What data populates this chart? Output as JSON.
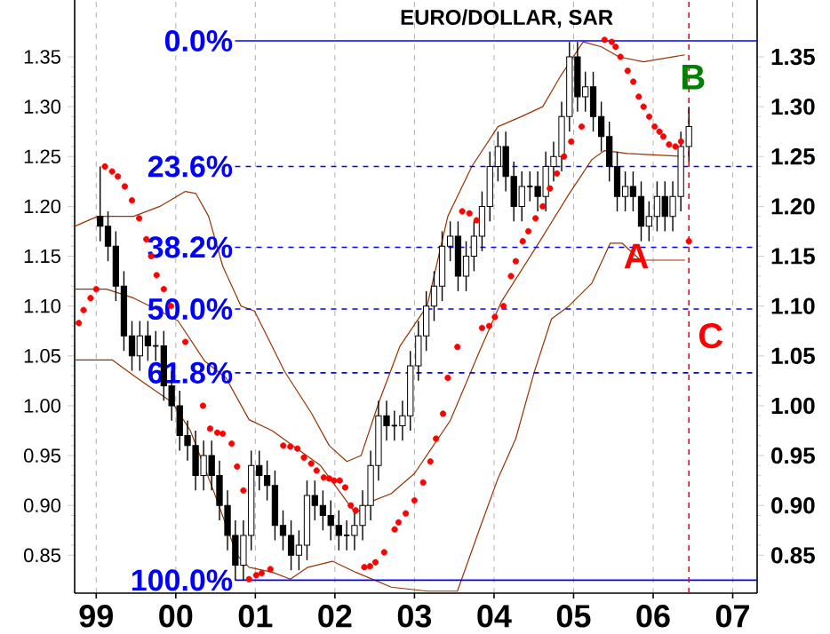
{
  "chart_data": {
    "type": "candlestick",
    "title": "EURO/DOLLAR, SAR",
    "xlim": [
      "1998-09-24",
      "2007-04-23"
    ],
    "ylim": [
      0.812,
      1.407
    ],
    "y2lim": [
      0.812,
      1.407
    ],
    "grid": "x",
    "xticks": [
      {
        "value": "1999",
        "label": "99"
      },
      {
        "value": "2000",
        "label": "00"
      },
      {
        "value": "2001",
        "label": "01"
      },
      {
        "value": "2002",
        "label": "02"
      },
      {
        "value": "2003",
        "label": "03"
      },
      {
        "value": "2004",
        "label": "04"
      },
      {
        "value": "2005",
        "label": "05"
      },
      {
        "value": "2006",
        "label": "06"
      },
      {
        "value": "2007",
        "label": "07"
      }
    ],
    "yticks": [
      {
        "value": 0.85,
        "label": "0.85"
      },
      {
        "value": 0.9,
        "label": "0.90"
      },
      {
        "value": 0.95,
        "label": "0.95"
      },
      {
        "value": 1.0,
        "label": "1.00"
      },
      {
        "value": 1.05,
        "label": "1.05"
      },
      {
        "value": 1.1,
        "label": "1.10"
      },
      {
        "value": 1.15,
        "label": "1.15"
      },
      {
        "value": 1.2,
        "label": "1.20"
      },
      {
        "value": 1.25,
        "label": "1.25"
      },
      {
        "value": 1.3,
        "label": "1.30"
      },
      {
        "value": 1.35,
        "label": "1.35"
      }
    ],
    "y2ticks": [
      {
        "value": 0.85,
        "label": "0.85"
      },
      {
        "value": 0.9,
        "label": "0.90"
      },
      {
        "value": 0.95,
        "label": "0.95"
      },
      {
        "value": 1.0,
        "label": "1.00"
      },
      {
        "value": 1.05,
        "label": "1.05"
      },
      {
        "value": 1.1,
        "label": "1.10"
      },
      {
        "value": 1.15,
        "label": "1.15"
      },
      {
        "value": 1.2,
        "label": "1.20"
      },
      {
        "value": 1.25,
        "label": "1.25"
      },
      {
        "value": 1.3,
        "label": "1.30"
      },
      {
        "value": 1.35,
        "label": "1.35"
      }
    ],
    "x": [
      "1999-01-19",
      "1999-02-24",
      "1999-04-01",
      "1999-05-08",
      "1999-06-14",
      "1999-07-20",
      "1999-08-26",
      "1999-10-01",
      "1999-11-07",
      "1999-12-13",
      "2000-01-19",
      "2000-02-24",
      "2000-04-01",
      "2000-05-08",
      "2000-06-14",
      "2000-07-20",
      "2000-08-26",
      "2000-10-01",
      "2000-11-07",
      "2000-12-13",
      "2001-01-19",
      "2001-02-24",
      "2001-04-01",
      "2001-05-08",
      "2001-06-14",
      "2001-07-20",
      "2001-08-26",
      "2001-10-01",
      "2001-11-07",
      "2001-12-13",
      "2002-01-19",
      "2002-02-24",
      "2002-04-01",
      "2002-05-08",
      "2002-06-14",
      "2002-07-20",
      "2002-08-26",
      "2002-10-01",
      "2002-11-07",
      "2002-12-13",
      "2003-01-19",
      "2003-02-24",
      "2003-04-01",
      "2003-05-08",
      "2003-06-14",
      "2003-07-20",
      "2003-08-26",
      "2003-10-01",
      "2003-11-07",
      "2003-12-13",
      "2004-01-19",
      "2004-02-24",
      "2004-04-01",
      "2004-05-08",
      "2004-06-14",
      "2004-07-20",
      "2004-08-26",
      "2004-10-01",
      "2004-11-07",
      "2004-12-13",
      "2005-01-19",
      "2005-02-24",
      "2005-04-01",
      "2005-05-08",
      "2005-06-14",
      "2005-07-20",
      "2005-08-26",
      "2005-10-01",
      "2005-11-07",
      "2005-12-13",
      "2006-01-19",
      "2006-02-24",
      "2006-04-01",
      "2006-05-08",
      "2006-06-14"
    ],
    "ohlc": [
      [
        1.19,
        1.24,
        1.165,
        1.18
      ],
      [
        1.18,
        1.195,
        1.145,
        1.16
      ],
      [
        1.16,
        1.175,
        1.105,
        1.12
      ],
      [
        1.12,
        1.135,
        1.055,
        1.07
      ],
      [
        1.07,
        1.085,
        1.035,
        1.05
      ],
      [
        1.05,
        1.085,
        1.035,
        1.07
      ],
      [
        1.07,
        1.085,
        1.045,
        1.06
      ],
      [
        1.06,
        1.075,
        1.045,
        1.06
      ],
      [
        1.06,
        1.075,
        1.005,
        1.02
      ],
      [
        1.02,
        1.035,
        0.985,
        1.0
      ],
      [
        1.0,
        1.015,
        0.955,
        0.97
      ],
      [
        0.97,
        0.985,
        0.945,
        0.96
      ],
      [
        0.96,
        0.975,
        0.915,
        0.93
      ],
      [
        0.93,
        0.965,
        0.915,
        0.95
      ],
      [
        0.95,
        0.965,
        0.915,
        0.93
      ],
      [
        0.93,
        0.945,
        0.885,
        0.9
      ],
      [
        0.9,
        0.915,
        0.855,
        0.87
      ],
      [
        0.87,
        0.885,
        0.825,
        0.84
      ],
      [
        0.84,
        0.885,
        0.825,
        0.87
      ],
      [
        0.87,
        0.955,
        0.855,
        0.94
      ],
      [
        0.94,
        0.955,
        0.915,
        0.93
      ],
      [
        0.93,
        0.945,
        0.905,
        0.92
      ],
      [
        0.92,
        0.935,
        0.865,
        0.88
      ],
      [
        0.88,
        0.895,
        0.855,
        0.87
      ],
      [
        0.87,
        0.885,
        0.835,
        0.85
      ],
      [
        0.85,
        0.875,
        0.835,
        0.86
      ],
      [
        0.86,
        0.925,
        0.845,
        0.91
      ],
      [
        0.91,
        0.925,
        0.885,
        0.9
      ],
      [
        0.9,
        0.915,
        0.875,
        0.89
      ],
      [
        0.89,
        0.905,
        0.865,
        0.88
      ],
      [
        0.88,
        0.895,
        0.855,
        0.87
      ],
      [
        0.87,
        0.885,
        0.855,
        0.87
      ],
      [
        0.87,
        0.895,
        0.855,
        0.88
      ],
      [
        0.88,
        0.915,
        0.865,
        0.9
      ],
      [
        0.9,
        0.955,
        0.885,
        0.94
      ],
      [
        0.94,
        1.005,
        0.925,
        0.99
      ],
      [
        0.99,
        1.005,
        0.965,
        0.98
      ],
      [
        0.98,
        0.995,
        0.965,
        0.98
      ],
      [
        0.98,
        1.005,
        0.965,
        0.99
      ],
      [
        0.99,
        1.055,
        0.975,
        1.04
      ],
      [
        1.04,
        1.085,
        1.025,
        1.07
      ],
      [
        1.07,
        1.115,
        1.055,
        1.1
      ],
      [
        1.1,
        1.135,
        1.085,
        1.12
      ],
      [
        1.12,
        1.175,
        1.105,
        1.16
      ],
      [
        1.16,
        1.185,
        1.145,
        1.17
      ],
      [
        1.17,
        1.185,
        1.115,
        1.13
      ],
      [
        1.13,
        1.165,
        1.115,
        1.15
      ],
      [
        1.15,
        1.185,
        1.135,
        1.17
      ],
      [
        1.17,
        1.215,
        1.155,
        1.2
      ],
      [
        1.2,
        1.255,
        1.185,
        1.24
      ],
      [
        1.24,
        1.275,
        1.225,
        1.26
      ],
      [
        1.26,
        1.275,
        1.215,
        1.23
      ],
      [
        1.23,
        1.245,
        1.185,
        1.2
      ],
      [
        1.2,
        1.235,
        1.185,
        1.22
      ],
      [
        1.22,
        1.235,
        1.205,
        1.22
      ],
      [
        1.22,
        1.235,
        1.195,
        1.21
      ],
      [
        1.21,
        1.255,
        1.195,
        1.24
      ],
      [
        1.24,
        1.265,
        1.225,
        1.25
      ],
      [
        1.25,
        1.305,
        1.235,
        1.29
      ],
      [
        1.29,
        1.365,
        1.275,
        1.35
      ],
      [
        1.35,
        1.365,
        1.295,
        1.31
      ],
      [
        1.31,
        1.335,
        1.295,
        1.32
      ],
      [
        1.32,
        1.335,
        1.275,
        1.29
      ],
      [
        1.29,
        1.305,
        1.255,
        1.27
      ],
      [
        1.27,
        1.285,
        1.225,
        1.24
      ],
      [
        1.24,
        1.255,
        1.195,
        1.21
      ],
      [
        1.21,
        1.235,
        1.195,
        1.22
      ],
      [
        1.22,
        1.235,
        1.195,
        1.21
      ],
      [
        1.21,
        1.225,
        1.165,
        1.18
      ],
      [
        1.18,
        1.205,
        1.165,
        1.19
      ],
      [
        1.19,
        1.225,
        1.175,
        1.21
      ],
      [
        1.21,
        1.225,
        1.175,
        1.19
      ],
      [
        1.19,
        1.225,
        1.175,
        1.21
      ],
      [
        1.21,
        1.275,
        1.195,
        1.26
      ],
      [
        1.26,
        1.3,
        1.245,
        1.28
      ]
    ],
    "series": [
      {
        "type": "scatter",
        "color": "#ff0000",
        "marker": "circle",
        "x": [
          "1998-10-13",
          "1998-11-04",
          "1998-12-06",
          "1999-01-01",
          "1999-02-10",
          "1999-03-15",
          "1999-04-10",
          "1999-05-12",
          "1999-06-14",
          "1999-07-17",
          "1999-08-19",
          "1999-09-10",
          "1999-10-05",
          "1999-11-07",
          "1999-12-10",
          "2000-02-14",
          "2000-05-05",
          "2000-06-07",
          "2000-07-10",
          "2000-08-04",
          "2000-09-14",
          "2000-10-09",
          "2000-11-07",
          "2000-12-03",
          "2001-01-05",
          "2001-01-30",
          "2001-03-11",
          "2001-05-09",
          "2001-06-11",
          "2001-07-13",
          "2001-08-12",
          "2001-09-14",
          "2001-10-09",
          "2001-11-11",
          "2001-12-06",
          "2001-12-28",
          "2002-01-23",
          "2002-02-17",
          "2002-03-15",
          "2002-04-06",
          "2002-05-16",
          "2002-06-11",
          "2002-07-06",
          "2002-08-15",
          "2002-10-02",
          "2002-10-20",
          "2002-11-22",
          "2003-01-01",
          "2003-02-10",
          "2003-03-15",
          "2003-04-10",
          "2003-05-12",
          "2003-06-03",
          "2003-07-17",
          "2003-08-08",
          "2003-09-10",
          "2003-10-13",
          "2003-11-07",
          "2003-12-10",
          "2004-01-05",
          "2004-02-14",
          "2004-03-19",
          "2004-04-10",
          "2004-05-12",
          "2004-06-07",
          "2004-07-10",
          "2004-08-12",
          "2004-09-14",
          "2004-10-16",
          "2004-11-18",
          "2004-12-21",
          "2005-02-07",
          "2005-05-23",
          "2005-06-25",
          "2005-07-13",
          "2005-08-04",
          "2005-09-06",
          "2005-10-02",
          "2005-10-27",
          "2005-11-18",
          "2005-12-14",
          "2006-01-08",
          "2006-01-30",
          "2006-02-17",
          "2006-03-15",
          "2006-04-13",
          "2006-05-09",
          "2006-06-14"
        ],
        "values": [
          1.083,
          1.096,
          1.108,
          1.117,
          1.24,
          1.235,
          1.23,
          1.22,
          1.206,
          1.188,
          1.167,
          1.15,
          1.131,
          1.117,
          1.1,
          1.064,
          1.0,
          0.977,
          0.973,
          0.972,
          0.962,
          0.939,
          0.915,
          0.826,
          0.83,
          0.832,
          0.836,
          0.96,
          0.959,
          0.957,
          0.948,
          0.942,
          0.935,
          0.928,
          0.927,
          0.925,
          0.925,
          0.918,
          0.9,
          0.895,
          0.838,
          0.839,
          0.843,
          0.853,
          0.876,
          0.883,
          0.892,
          0.905,
          0.923,
          0.944,
          0.967,
          0.992,
          1.028,
          1.059,
          1.195,
          1.193,
          1.186,
          1.078,
          1.08,
          1.089,
          1.1,
          1.13,
          1.145,
          1.165,
          1.175,
          1.188,
          1.2,
          1.218,
          1.233,
          1.25,
          1.265,
          1.28,
          1.367,
          1.365,
          1.36,
          1.35,
          1.336,
          1.325,
          1.31,
          1.3,
          1.29,
          1.28,
          1.275,
          1.27,
          1.262,
          1.26,
          1.265,
          1.165
        ]
      },
      {
        "type": "line",
        "color": "#993300",
        "x": [
          "1998-09-24",
          "1999-01-08",
          "1999-06-22",
          "1999-10-20",
          "2000-02-14",
          "2000-04-02",
          "2000-05-31",
          "2000-08-04",
          "2000-10-27",
          "2000-12-28",
          "2001-05-16",
          "2001-09-14",
          "2001-12-06",
          "2002-02-25",
          "2002-05-01",
          "2002-07-21",
          "2002-10-27",
          "2003-02-28",
          "2003-06-03",
          "2003-09-21",
          "2004-01-19",
          "2004-05-05",
          "2004-08-12",
          "2004-10-31",
          "2005-02-14",
          "2005-05-09",
          "2005-07-28",
          "2005-11-18",
          "2006-05-27"
        ],
        "values": [
          1.18,
          1.19,
          1.19,
          1.2,
          1.215,
          1.213,
          1.19,
          1.14,
          1.1,
          1.095,
          1.034,
          0.993,
          0.96,
          0.944,
          0.95,
          1.003,
          1.06,
          1.1,
          1.19,
          1.24,
          1.28,
          1.29,
          1.3,
          1.33,
          1.365,
          1.36,
          1.35,
          1.345,
          1.352
        ]
      },
      {
        "type": "line",
        "color": "#993300",
        "x": [
          "1998-09-24",
          "1999-02-17",
          "1999-06-22",
          "1999-10-20",
          "2000-01-12",
          "2000-05-12",
          "2000-08-19",
          "2000-12-03",
          "2001-03-19",
          "2001-10-27",
          "2002-04-06",
          "2002-06-29",
          "2002-09-17",
          "2003-01-01",
          "2003-06-14",
          "2003-10-31",
          "2004-02-03",
          "2004-07-24",
          "2004-12-10",
          "2005-03-26",
          "2005-05-23",
          "2005-09-06",
          "2006-05-27"
        ],
        "values": [
          1.117,
          1.117,
          1.108,
          1.095,
          1.085,
          1.045,
          1.028,
          0.986,
          0.975,
          0.94,
          0.892,
          0.905,
          0.912,
          0.932,
          0.985,
          1.057,
          1.104,
          1.163,
          1.212,
          1.247,
          1.256,
          1.253,
          1.25
        ]
      },
      {
        "type": "line",
        "color": "#993300",
        "x": [
          "1998-09-24",
          "1999-03-15",
          "1999-07-06",
          "1999-12-17",
          "2000-03-08",
          "2000-06-22",
          "2000-10-09",
          "2000-12-03",
          "2001-03-19",
          "2001-06-11",
          "2001-08-30",
          "2001-12-21",
          "2002-04-06",
          "2002-09-17",
          "2003-02-28",
          "2003-07-17",
          "2003-10-31",
          "2004-01-19",
          "2004-04-10",
          "2004-07-03",
          "2004-09-21",
          "2004-12-10",
          "2005-03-26",
          "2005-06-18",
          "2005-08-12",
          "2005-11-04",
          "2006-05-27"
        ],
        "values": [
          1.046,
          1.046,
          1.028,
          1.003,
          0.975,
          0.915,
          0.85,
          0.838,
          0.833,
          0.826,
          0.838,
          0.844,
          0.833,
          0.818,
          0.814,
          0.814,
          0.879,
          0.927,
          0.967,
          1.033,
          1.087,
          1.1,
          1.123,
          1.163,
          1.163,
          1.146,
          1.146
        ]
      }
    ],
    "ref_lines": [
      {
        "axis": "y",
        "value": 1.366,
        "color": "#0000ff",
        "line_style": "solid"
      },
      {
        "axis": "y",
        "value": 1.24,
        "color": "#0000ff",
        "line_style": "dashed"
      },
      {
        "axis": "y",
        "value": 1.159,
        "color": "#0000ff",
        "line_style": "dashed"
      },
      {
        "axis": "y",
        "value": 1.097,
        "color": "#0000ff",
        "line_style": "dashed"
      },
      {
        "axis": "y",
        "value": 1.033,
        "color": "#0000ff",
        "line_style": "dashed"
      },
      {
        "axis": "y",
        "value": 0.825,
        "color": "#0000ff",
        "line_style": "solid"
      },
      {
        "axis": "x",
        "value": "2006-06-14",
        "color": "#ff0000",
        "line_style": "dashed"
      }
    ],
    "annotations": [
      "0.0%",
      "23.6%",
      "38.2%",
      "50.0%",
      "61.8%",
      "100.0%",
      {
        "text": "A",
        "x": "2005-10-16",
        "y": 1.15
      },
      "B",
      "C"
    ]
  }
}
